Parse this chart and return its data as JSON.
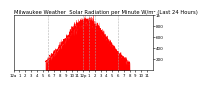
{
  "title": "Milwaukee Weather  Solar Radiation per Minute W/m² (Last 24 Hours)",
  "title_fontsize": 3.8,
  "background_color": "#ffffff",
  "plot_bg_color": "#ffffff",
  "grid_color": "#aaaaaa",
  "line_color": "#ff0000",
  "fill_color": "#ff0000",
  "n_points": 1440,
  "peak_value": 870,
  "peak_hour": 12.5,
  "ylim": [
    0,
    1000
  ],
  "yticks": [
    200,
    400,
    600,
    800,
    1000
  ],
  "ytick_labels": [
    "200",
    "400",
    "600",
    "800",
    "1k"
  ],
  "ylabel_fontsize": 3.0,
  "xlabel_fontsize": 2.8,
  "xtick_hours": [
    0,
    1,
    2,
    3,
    4,
    5,
    6,
    7,
    8,
    9,
    10,
    11,
    12,
    13,
    14,
    15,
    16,
    17,
    18,
    19,
    20,
    21,
    22,
    23
  ],
  "xtick_labels": [
    "12a",
    "1",
    "2",
    "3",
    "4",
    "5",
    "6",
    "7",
    "8",
    "9",
    "10",
    "11",
    "12p",
    "1",
    "2",
    "3",
    "4",
    "5",
    "6",
    "7",
    "8",
    "9",
    "10",
    "11"
  ],
  "vgrid_hours": [
    6,
    12,
    13,
    14,
    18
  ],
  "noise_seed": 42,
  "sigma_hours": 3.8,
  "xlim": [
    0,
    24
  ]
}
